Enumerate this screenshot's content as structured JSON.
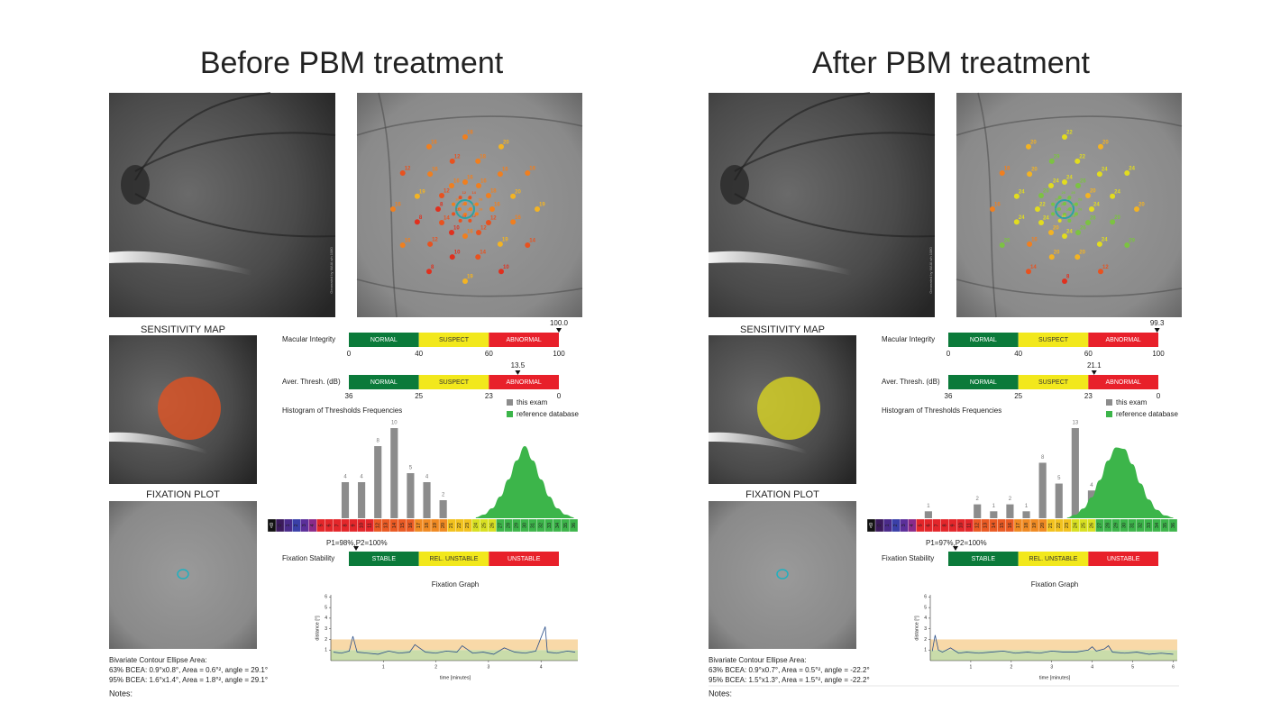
{
  "panels": [
    {
      "title": "Before PBM treatment",
      "watermark": "Generated by MAIA s/n 1080",
      "stimuli": [
        [
          16,
          16,
          16,
          16
        ],
        [
          14,
          16,
          16,
          12,
          14,
          12,
          16,
          12
        ],
        [
          16,
          16,
          18,
          16,
          12,
          12,
          16,
          10,
          14,
          8,
          12,
          16
        ],
        [
          18,
          16,
          20,
          16,
          19,
          14,
          10,
          12,
          8,
          19,
          16,
          12
        ],
        [
          18,
          20,
          16,
          19,
          14,
          10,
          19,
          8,
          16,
          16,
          12,
          16
        ]
      ],
      "sensitivity_map_label": "SENSITIVITY MAP",
      "fixation_plot_label": "FIXATION PLOT",
      "macular_integrity": {
        "label": "Macular Integrity",
        "segments": [
          "NORMAL",
          "SUSPECT",
          "ABNORMAL"
        ],
        "ticks": [
          0,
          40,
          60,
          100
        ],
        "marker": {
          "value": 100,
          "label": "100.0"
        }
      },
      "average_threshold": {
        "label": "Aver. Thresh. (dB)",
        "segments": [
          "NORMAL",
          "SUSPECT",
          "ABNORMAL"
        ],
        "ticks": [
          36,
          25,
          23,
          0
        ],
        "marker": 13.5
      },
      "histogram": {
        "title": "Histogram of Thresholds Frequencies",
        "categories": [
          "<0",
          0,
          1,
          2,
          3,
          4,
          5,
          6,
          7,
          8,
          9,
          10,
          11,
          12,
          13,
          14,
          15,
          16,
          17,
          18,
          19,
          20,
          21,
          22,
          23,
          24,
          25,
          26,
          27,
          28,
          29,
          30,
          31,
          32,
          33,
          34,
          35,
          36
        ],
        "series": [
          {
            "name": "this exam",
            "color": "#8c8c8c",
            "x": [
              8,
              10,
              12,
              14,
              16,
              18,
              20
            ],
            "values": [
              4,
              4,
              8,
              10,
              5,
              4,
              2
            ]
          },
          {
            "name": "reference database",
            "color": "#3cb54a",
            "x": [
              24,
              25,
              26,
              27,
              28,
              29,
              30,
              31,
              32,
              33,
              34,
              35,
              36
            ],
            "values": [
              0.1,
              0.4,
              1.1,
              2.4,
              4.3,
              6.4,
              8.0,
              6.4,
              4.3,
              2.4,
              1.1,
              0.4,
              0.1
            ]
          }
        ]
      },
      "fixation_stability": {
        "label": "Fixation Stability",
        "segments": [
          "STABLE",
          "REL. UNSTABLE",
          "UNSTABLE"
        ],
        "marker_label": "P1=98%,P2=100%"
      },
      "fixation_graph": {
        "title": "Fixation Graph",
        "y_label": "distance [°]",
        "x_label": "time [minutes]",
        "xlim": [
          0,
          4.7
        ],
        "xticks": [
          1,
          2,
          3,
          4
        ],
        "ylim": [
          0,
          6.2
        ],
        "yticks": [
          1,
          2,
          3,
          4,
          5,
          6
        ],
        "zones": [
          {
            "from": 0,
            "to": 1,
            "color": "#c9dcaa"
          },
          {
            "from": 1,
            "to": 2,
            "color": "#f8d9a8"
          }
        ],
        "color": "#2b4f8a",
        "x": [
          0.05,
          0.2,
          0.35,
          0.42,
          0.5,
          0.7,
          0.9,
          1.1,
          1.3,
          1.5,
          1.6,
          1.8,
          2.0,
          2.2,
          2.4,
          2.5,
          2.7,
          2.9,
          3.1,
          3.3,
          3.5,
          3.7,
          3.9,
          4.08,
          4.12,
          4.3,
          4.5,
          4.65
        ],
        "values": [
          0.8,
          0.7,
          0.9,
          2.3,
          0.8,
          0.7,
          0.6,
          0.9,
          0.7,
          0.8,
          1.5,
          0.8,
          0.7,
          0.9,
          0.8,
          1.4,
          0.7,
          0.8,
          0.6,
          1.2,
          0.8,
          0.7,
          0.9,
          3.2,
          0.8,
          0.7,
          0.9,
          0.8
        ]
      },
      "bcea": {
        "title": "Bivariate Contour Ellipse Area:",
        "lines": [
          "63% BCEA: 0.9°x0.8°, Area = 0.6°², angle = 29.1°",
          "95% BCEA: 1.6°x1.4°, Area = 1.8°², angle = 29.1°"
        ]
      },
      "notes": "Notes:"
    },
    {
      "title": "After PBM treatment",
      "watermark": "Generated by MAIA s/n 1080",
      "stimuli": [
        [
          28,
          28,
          26,
          28
        ],
        [
          26,
          28,
          26,
          28,
          24,
          28,
          26,
          26
        ],
        [
          24,
          26,
          20,
          24,
          28,
          26,
          24,
          20,
          24,
          22,
          26,
          24
        ],
        [
          22,
          24,
          24,
          29,
          24,
          20,
          20,
          16,
          24,
          24,
          20,
          29
        ],
        [
          22,
          20,
          24,
          20,
          29,
          12,
          8,
          14,
          26,
          16,
          18,
          20
        ]
      ],
      "sensitivity_map_label": "SENSITIVITY MAP",
      "fixation_plot_label": "FIXATION PLOT",
      "macular_integrity": {
        "label": "Macular Integrity",
        "segments": [
          "NORMAL",
          "SUSPECT",
          "ABNORMAL"
        ],
        "ticks": [
          0,
          40,
          60,
          100
        ],
        "marker": 99.3
      },
      "average_threshold": {
        "label": "Aver. Thresh. (dB)",
        "segments": [
          "NORMAL",
          "SUSPECT",
          "ABNORMAL"
        ],
        "ticks": [
          36,
          25,
          23,
          0
        ],
        "marker": 21.1
      },
      "histogram": {
        "title": "Histogram of Thresholds Frequencies",
        "categories": [
          "<0",
          0,
          1,
          2,
          3,
          4,
          5,
          6,
          7,
          8,
          9,
          10,
          11,
          12,
          13,
          14,
          15,
          16,
          17,
          18,
          19,
          20,
          21,
          22,
          23,
          24,
          25,
          26,
          27,
          28,
          29,
          30,
          31,
          32,
          33,
          34,
          35,
          36
        ],
        "series": [
          {
            "name": "this exam",
            "color": "#8c8c8c",
            "x": [
              6,
              12,
              14,
              16,
              18,
              20,
              22,
              24,
              26
            ],
            "values": [
              1,
              2,
              1,
              2,
              1,
              8,
              5,
              13,
              4
            ]
          },
          {
            "name": "reference database",
            "color": "#3cb54a",
            "x": [
              23,
              24,
              25,
              26,
              27,
              28,
              29,
              30,
              31,
              32,
              33,
              34,
              35,
              36
            ],
            "values": [
              0.1,
              0.5,
              1.4,
              3.0,
              5.5,
              8.3,
              10.2,
              10.0,
              7.8,
              5.0,
              2.7,
              1.2,
              0.4,
              0.1
            ]
          }
        ]
      },
      "fixation_stability": {
        "label": "Fixation Stability",
        "segments": [
          "STABLE",
          "REL. UNSTABLE",
          "UNSTABLE"
        ],
        "marker_label": "P1=97%,P2=100%"
      },
      "fixation_graph": {
        "title": "Fixation Graph",
        "y_label": "distance [°]",
        "x_label": "time [minutes]",
        "xlim": [
          0,
          6.1
        ],
        "xticks": [
          1,
          2,
          3,
          4,
          5,
          6
        ],
        "ylim": [
          0,
          6.2
        ],
        "yticks": [
          1,
          2,
          3,
          4,
          5,
          6
        ],
        "zones": [
          {
            "from": 0,
            "to": 1,
            "color": "#c9dcaa"
          },
          {
            "from": 1,
            "to": 2,
            "color": "#f8d9a8"
          }
        ],
        "color": "#2b4f8a",
        "x": [
          0.05,
          0.12,
          0.2,
          0.3,
          0.5,
          0.7,
          0.9,
          1.2,
          1.5,
          1.8,
          2.1,
          2.4,
          2.7,
          3.0,
          3.3,
          3.6,
          3.9,
          4.0,
          4.1,
          4.3,
          4.4,
          4.5,
          4.8,
          5.1,
          5.4,
          5.7,
          6.0
        ],
        "values": [
          0.9,
          2.4,
          1.0,
          0.8,
          1.2,
          0.7,
          0.8,
          0.7,
          0.8,
          0.9,
          0.7,
          0.8,
          0.7,
          0.9,
          0.8,
          0.8,
          1.0,
          1.3,
          0.9,
          1.1,
          1.4,
          0.8,
          0.7,
          0.8,
          0.6,
          0.7,
          0.6
        ]
      },
      "bcea": {
        "title": "Bivariate Contour Ellipse Area:",
        "lines": [
          "63% BCEA: 0.9°x0.7°, Area = 0.5°², angle = -22.2°",
          "95% BCEA: 1.5°x1.3°, Area = 1.5°², angle = -22.2°"
        ]
      },
      "notes": "Notes:"
    }
  ]
}
